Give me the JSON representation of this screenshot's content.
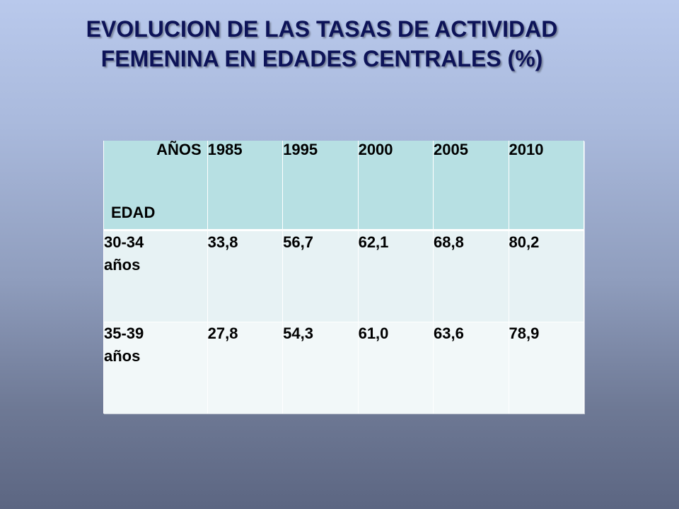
{
  "title": {
    "line1": "EVOLUCION DE LAS TASAS DE ACTIVIDAD",
    "line2": "FEMENINA EN EDADES CENTRALES (%)"
  },
  "table": {
    "corner_top": "AÑOS",
    "corner_bottom": "EDAD",
    "years": [
      "1985",
      "1995",
      "2000",
      "2005",
      "2010"
    ],
    "rows": [
      {
        "age_line1": "30-34",
        "age_line2": "años",
        "values": [
          "33,8",
          "56,7",
          "62,1",
          "68,8",
          "80,2"
        ]
      },
      {
        "age_line1": "35-39",
        "age_line2": "años",
        "values": [
          "27,8",
          "54,3",
          "61,0",
          "63,6",
          "78,9"
        ]
      }
    ]
  },
  "colors": {
    "title_text": "#0d1358",
    "header_fill": "#b7e0e3",
    "row_fill_1": "#e7f2f4",
    "row_fill_2": "#f2f8f9"
  }
}
